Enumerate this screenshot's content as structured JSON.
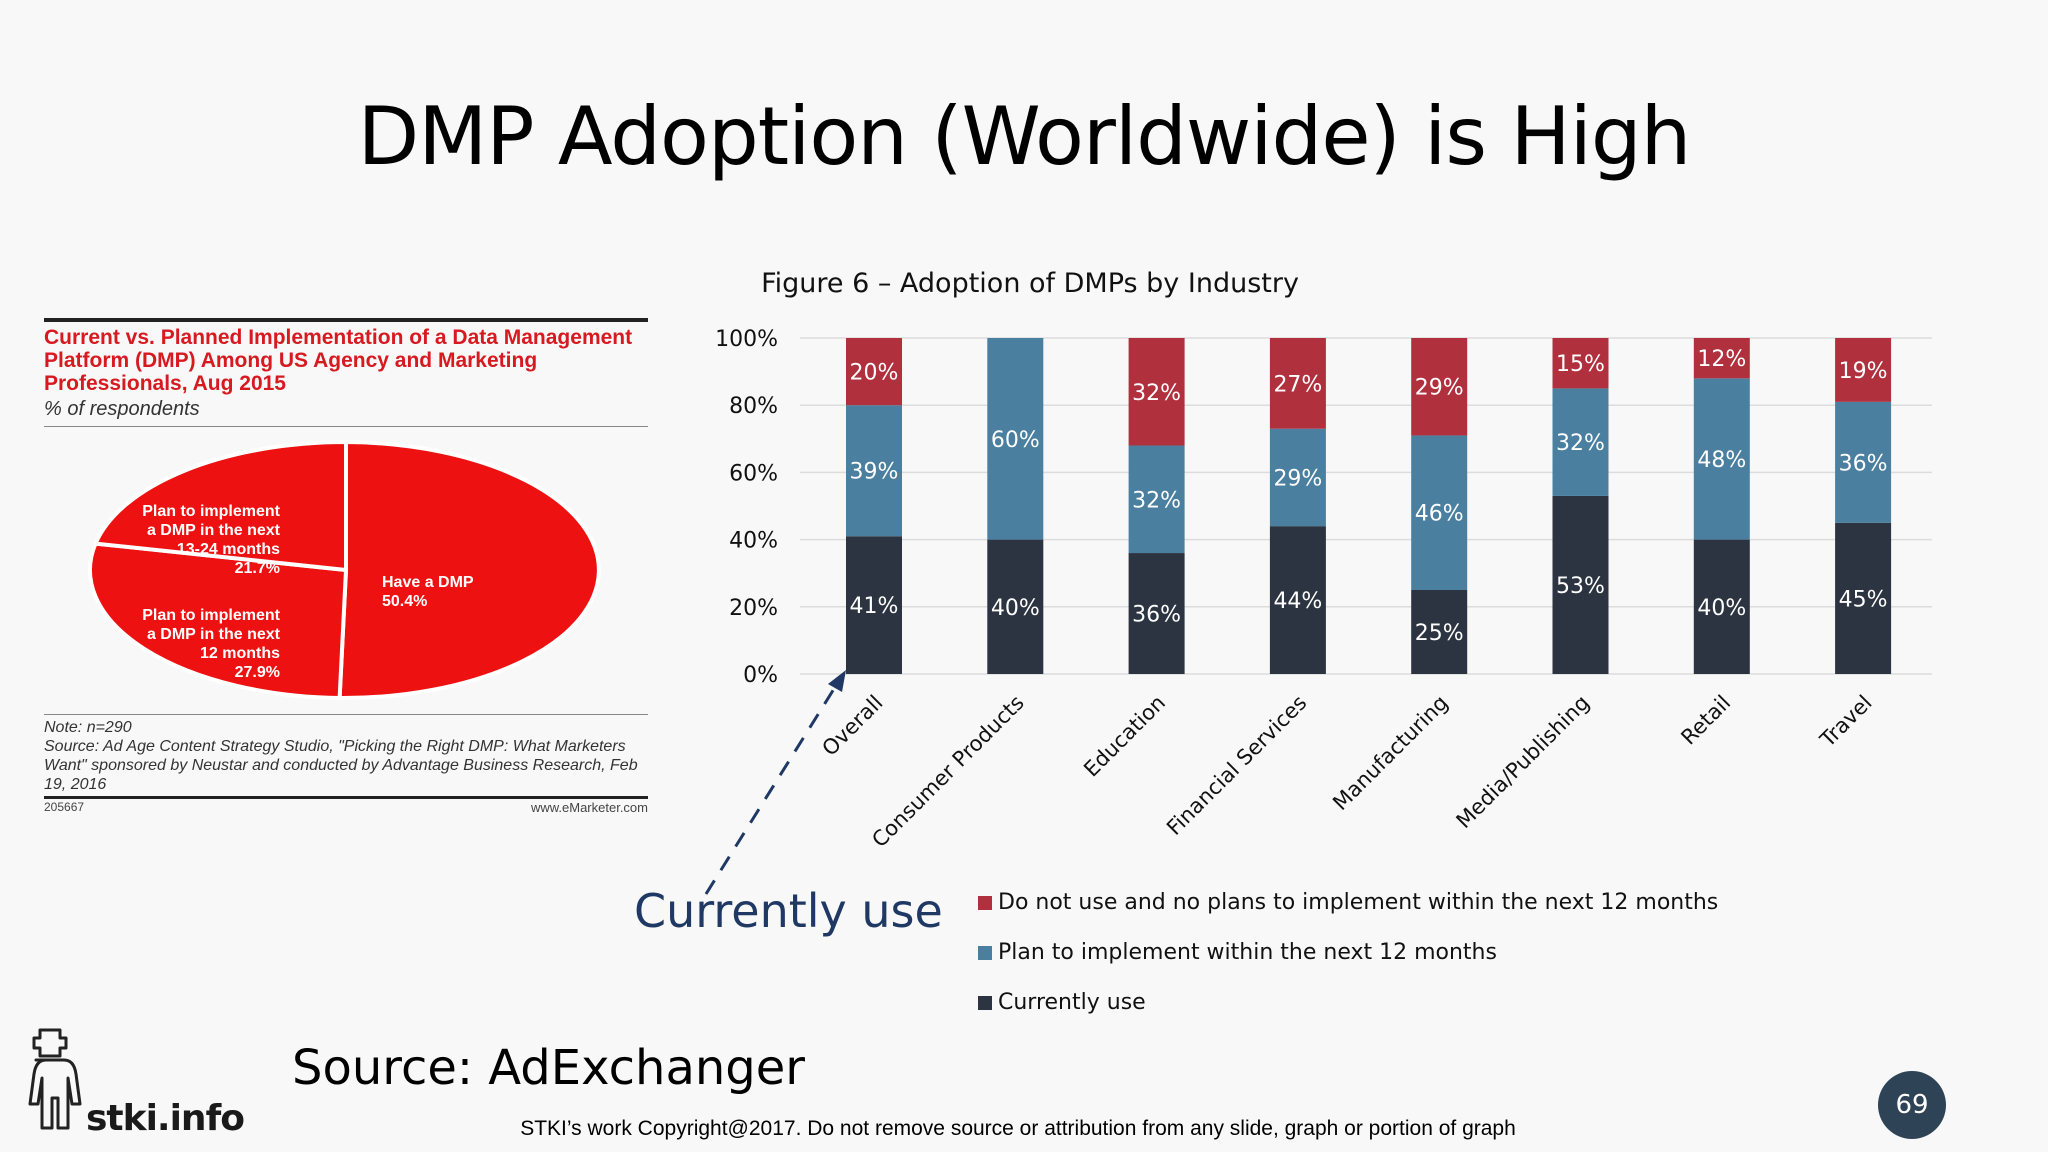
{
  "title": "DMP Adoption (Worldwide) is High",
  "pie_panel": {
    "title": "Current vs. Planned Implementation of a Data Management Platform (DMP) Among US Agency and Marketing Professionals, Aug 2015",
    "subtitle": "% of respondents",
    "note": "Note: n=290",
    "source": "Source: Ad Age Content Strategy Studio, \"Picking the Right DMP: What Marketers Want\" sponsored by Neustar and conducted by Advantage Business Research, Feb 19, 2016",
    "id": "205667",
    "brand": "www.eMarketer.com"
  },
  "callout": "Currently use",
  "source": "Source: AdExchanger",
  "copyright": "STKI’s work Copyright@2017. Do not remove source or attribution from any slide, graph or portion of graph",
  "page_number": "69",
  "logo_text": "stki.info",
  "colors": {
    "pie_red": "#ee1111",
    "not_use": "#b0303e",
    "plan": "#4a7fa0",
    "current": "#2b3440",
    "callout": "#1f3864"
  },
  "chart_data": [
    {
      "type": "pie",
      "slices": [
        {
          "label": "Have a DMP",
          "value": 50.4
        },
        {
          "label": "Plan to implement a DMP in the next 12 months",
          "value": 27.9
        },
        {
          "label": "Plan to implement a DMP in the next 13-24 months",
          "value": 21.7
        }
      ]
    },
    {
      "type": "bar",
      "stacked": true,
      "title": "Figure 6 – Adoption of DMPs by Industry",
      "categories": [
        "Overall",
        "Consumer Products",
        "Education",
        "Financial Services",
        "Manufacturing",
        "Media/Publishing",
        "Retail",
        "Travel"
      ],
      "series": [
        {
          "name": "Currently use",
          "values": [
            41,
            40,
            36,
            44,
            25,
            53,
            40,
            45
          ]
        },
        {
          "name": "Plan to implement within the next 12 months",
          "values": [
            39,
            60,
            32,
            29,
            46,
            32,
            48,
            36
          ]
        },
        {
          "name": "Do not use and no plans to implement within the next 12 months",
          "values": [
            20,
            null,
            32,
            27,
            29,
            15,
            12,
            19
          ]
        }
      ],
      "yticks": [
        "0%",
        "20%",
        "40%",
        "60%",
        "80%",
        "100%"
      ],
      "ylim": [
        0,
        100
      ],
      "grid": true,
      "legend": "bottom"
    }
  ]
}
